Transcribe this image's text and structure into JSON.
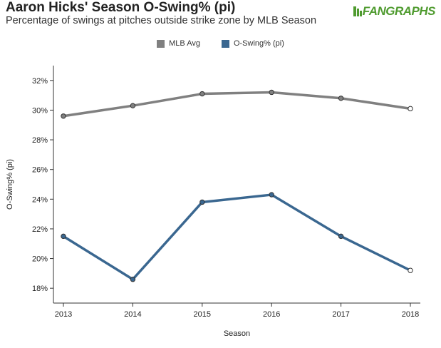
{
  "header": {
    "title": "Aaron Hicks' Season O-Swing% (pi)",
    "subtitle": "Percentage of swings at pitches outside strike zone by MLB Season",
    "logo_text": "FANGRAPHS",
    "logo_color": "#4f9b2f"
  },
  "chart_data": {
    "type": "line",
    "xlabel": "Season",
    "ylabel": "O-Swing% (pi)",
    "x": [
      2013,
      2014,
      2015,
      2016,
      2017,
      2018
    ],
    "ylim": [
      17,
      33
    ],
    "yticks": [
      18,
      20,
      22,
      24,
      26,
      28,
      30,
      32
    ],
    "ytick_labels": [
      "18%",
      "20%",
      "22%",
      "24%",
      "26%",
      "28%",
      "30%",
      "32%"
    ],
    "legend_position": "top-center",
    "series": [
      {
        "name": "MLB Avg",
        "color": "#808080",
        "values": [
          29.6,
          30.3,
          31.1,
          31.2,
          30.8,
          30.1
        ]
      },
      {
        "name": "O-Swing% (pi)",
        "color": "#3a6790",
        "values": [
          21.5,
          18.6,
          23.8,
          24.3,
          21.5,
          19.2
        ]
      }
    ]
  }
}
